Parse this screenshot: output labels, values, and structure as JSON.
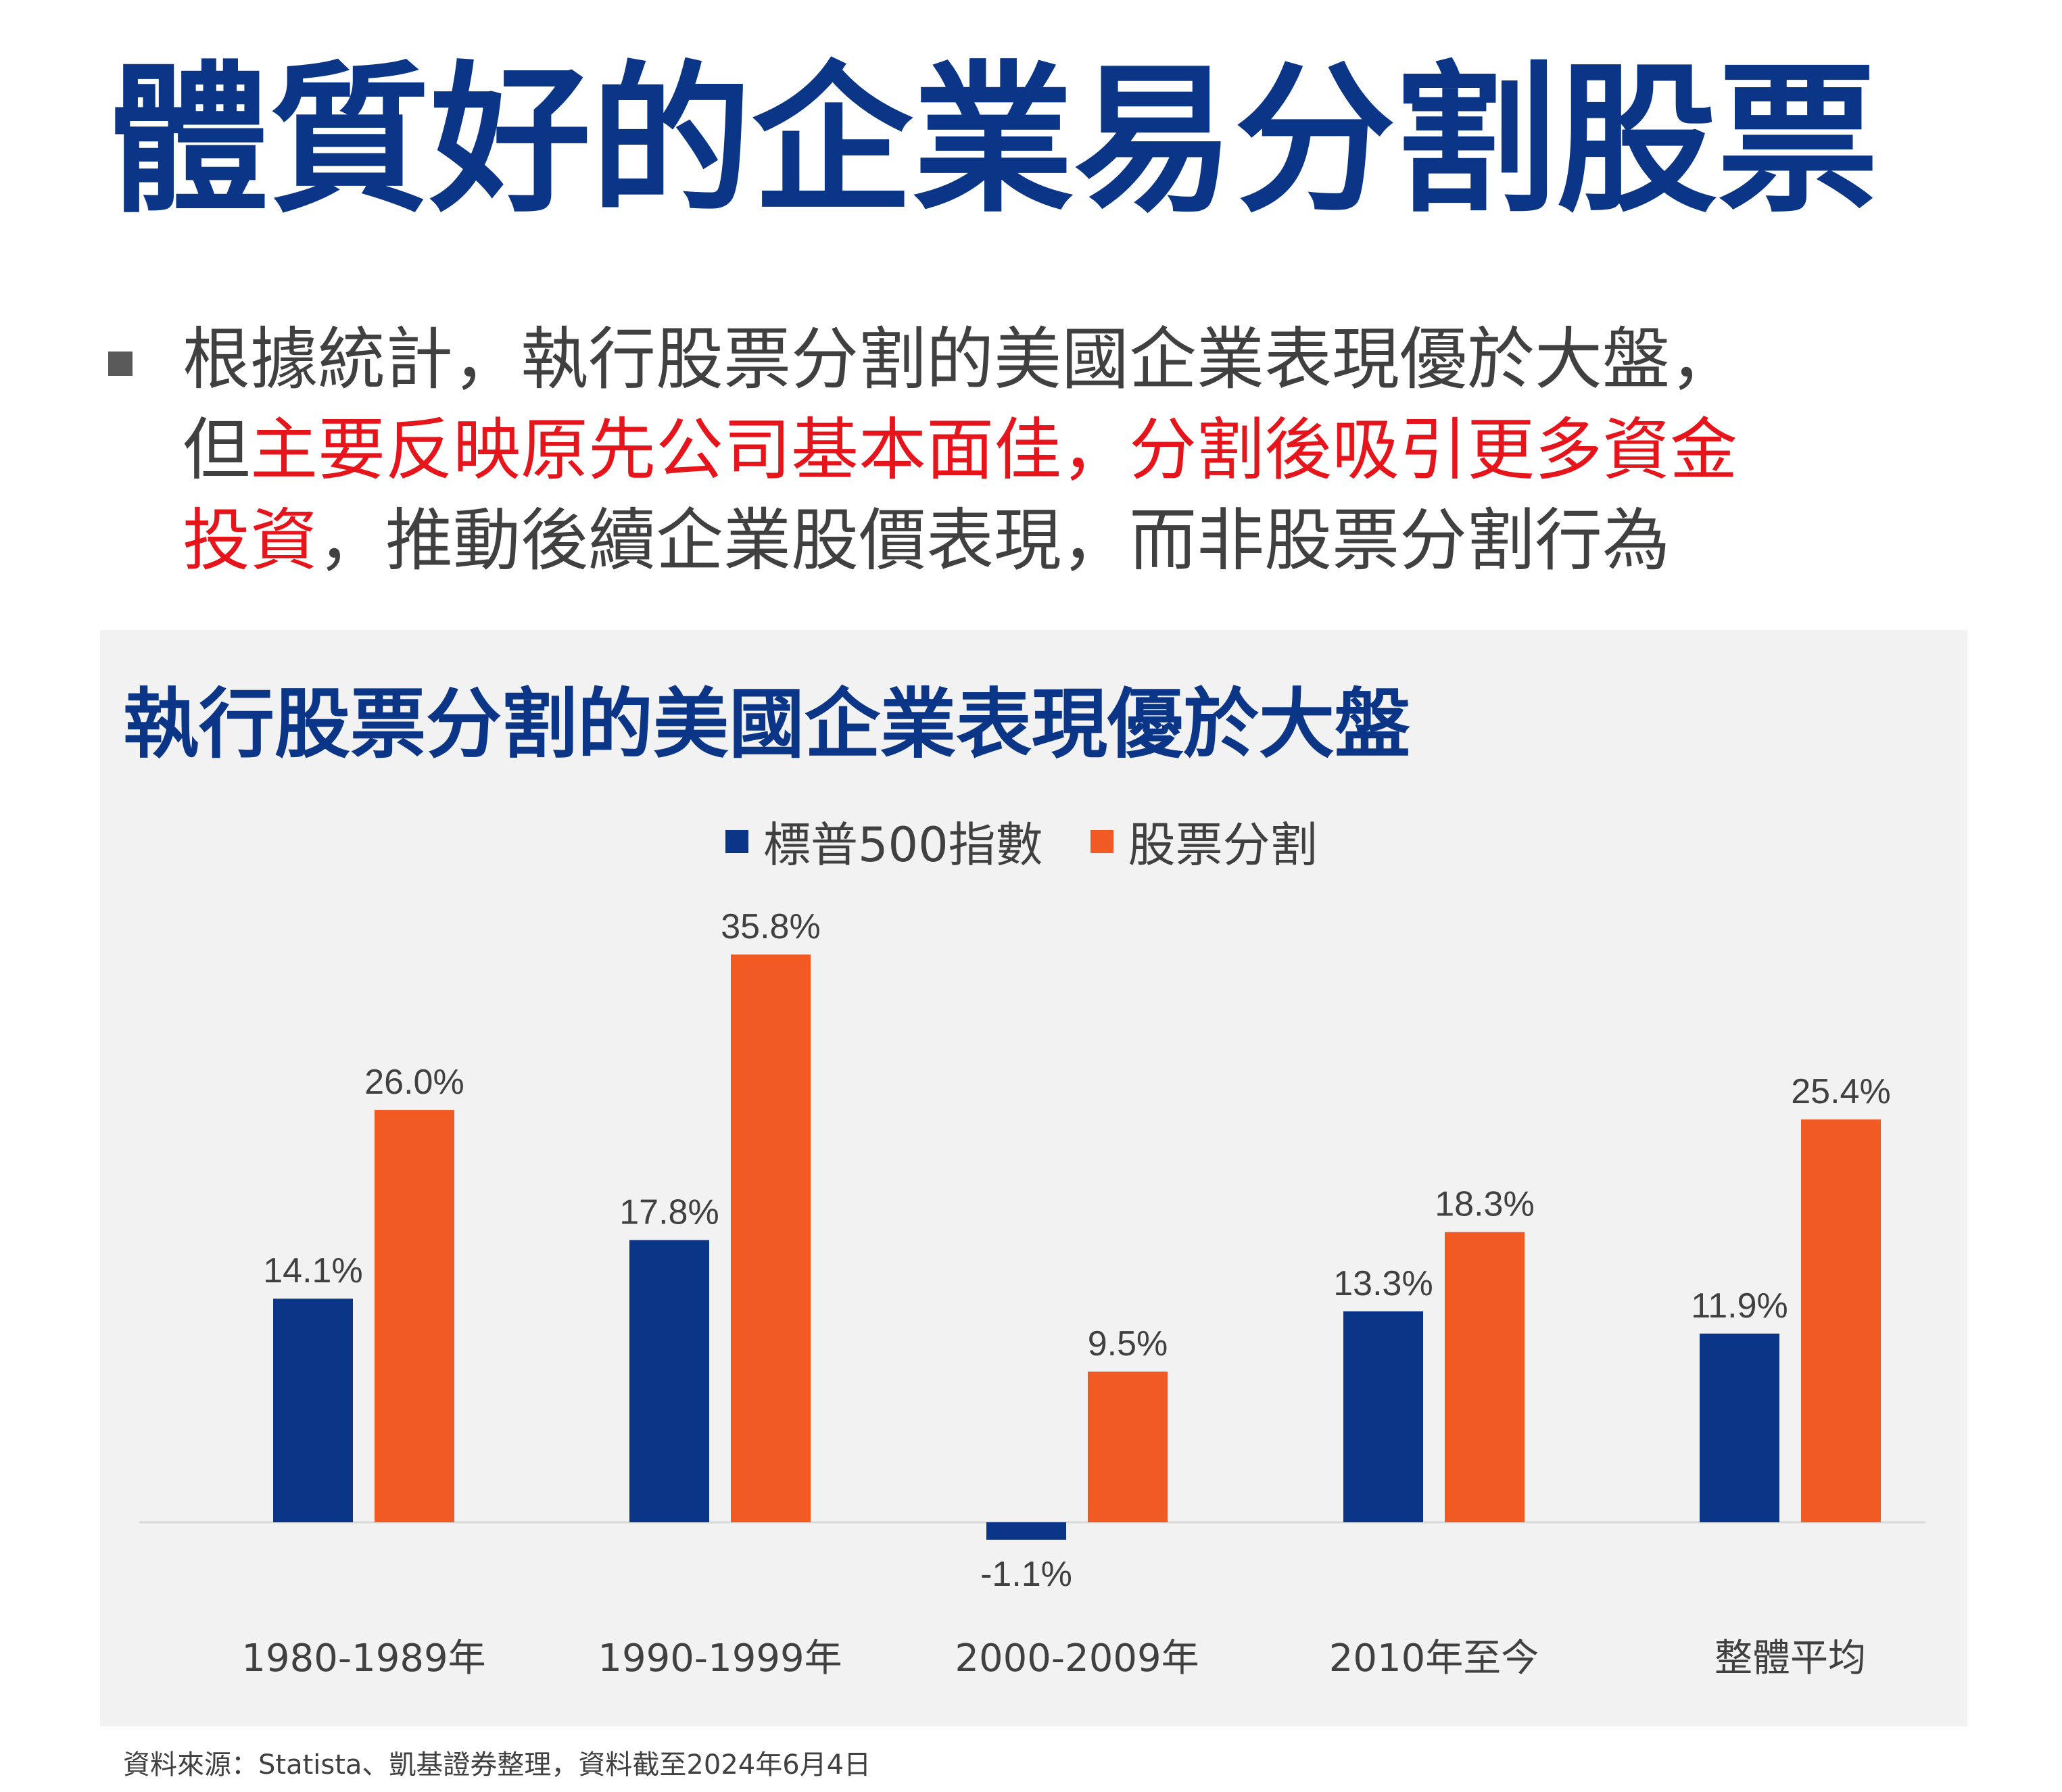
{
  "title": "體質好的企業易分割股票",
  "bullet": {
    "line1": "根據統計，執行股票分割的美國企業表現優於大盤，",
    "line2_a": "但",
    "line2_b": "主要反映原先公司基本面佳，分割後吸引更多資金",
    "line3_a": "投資",
    "line3_b": "，推動後續企業股價表現，而非股票分割行為"
  },
  "colors": {
    "title": "#0b3586",
    "highlight": "#e5151b",
    "sp500": "#0b3586",
    "split": "#f15a22",
    "panel": "#f2f2f2"
  },
  "chart_data": {
    "type": "bar",
    "title": "執行股票分割的美國企業表現優於大盤",
    "categories": [
      "1980-1989年",
      "1990-1999年",
      "2000-2009年",
      "2010年至今",
      "整體平均"
    ],
    "series": [
      {
        "name": "標普500指數",
        "values": [
          14.1,
          17.8,
          -1.1,
          13.3,
          11.9
        ],
        "labels": [
          "14.1%",
          "17.8%",
          "-1.1%",
          "13.3%",
          "11.9%"
        ]
      },
      {
        "name": "股票分割",
        "values": [
          26.0,
          35.8,
          9.5,
          18.3,
          25.4
        ],
        "labels": [
          "26.0%",
          "35.8%",
          "9.5%",
          "18.3%",
          "25.4%"
        ]
      }
    ],
    "ylim": [
      -1.1,
      35.8
    ],
    "grid": false,
    "legend": "top"
  },
  "source": "資料來源：Statista、凱基證券整理，資料截至2024年6月4日"
}
